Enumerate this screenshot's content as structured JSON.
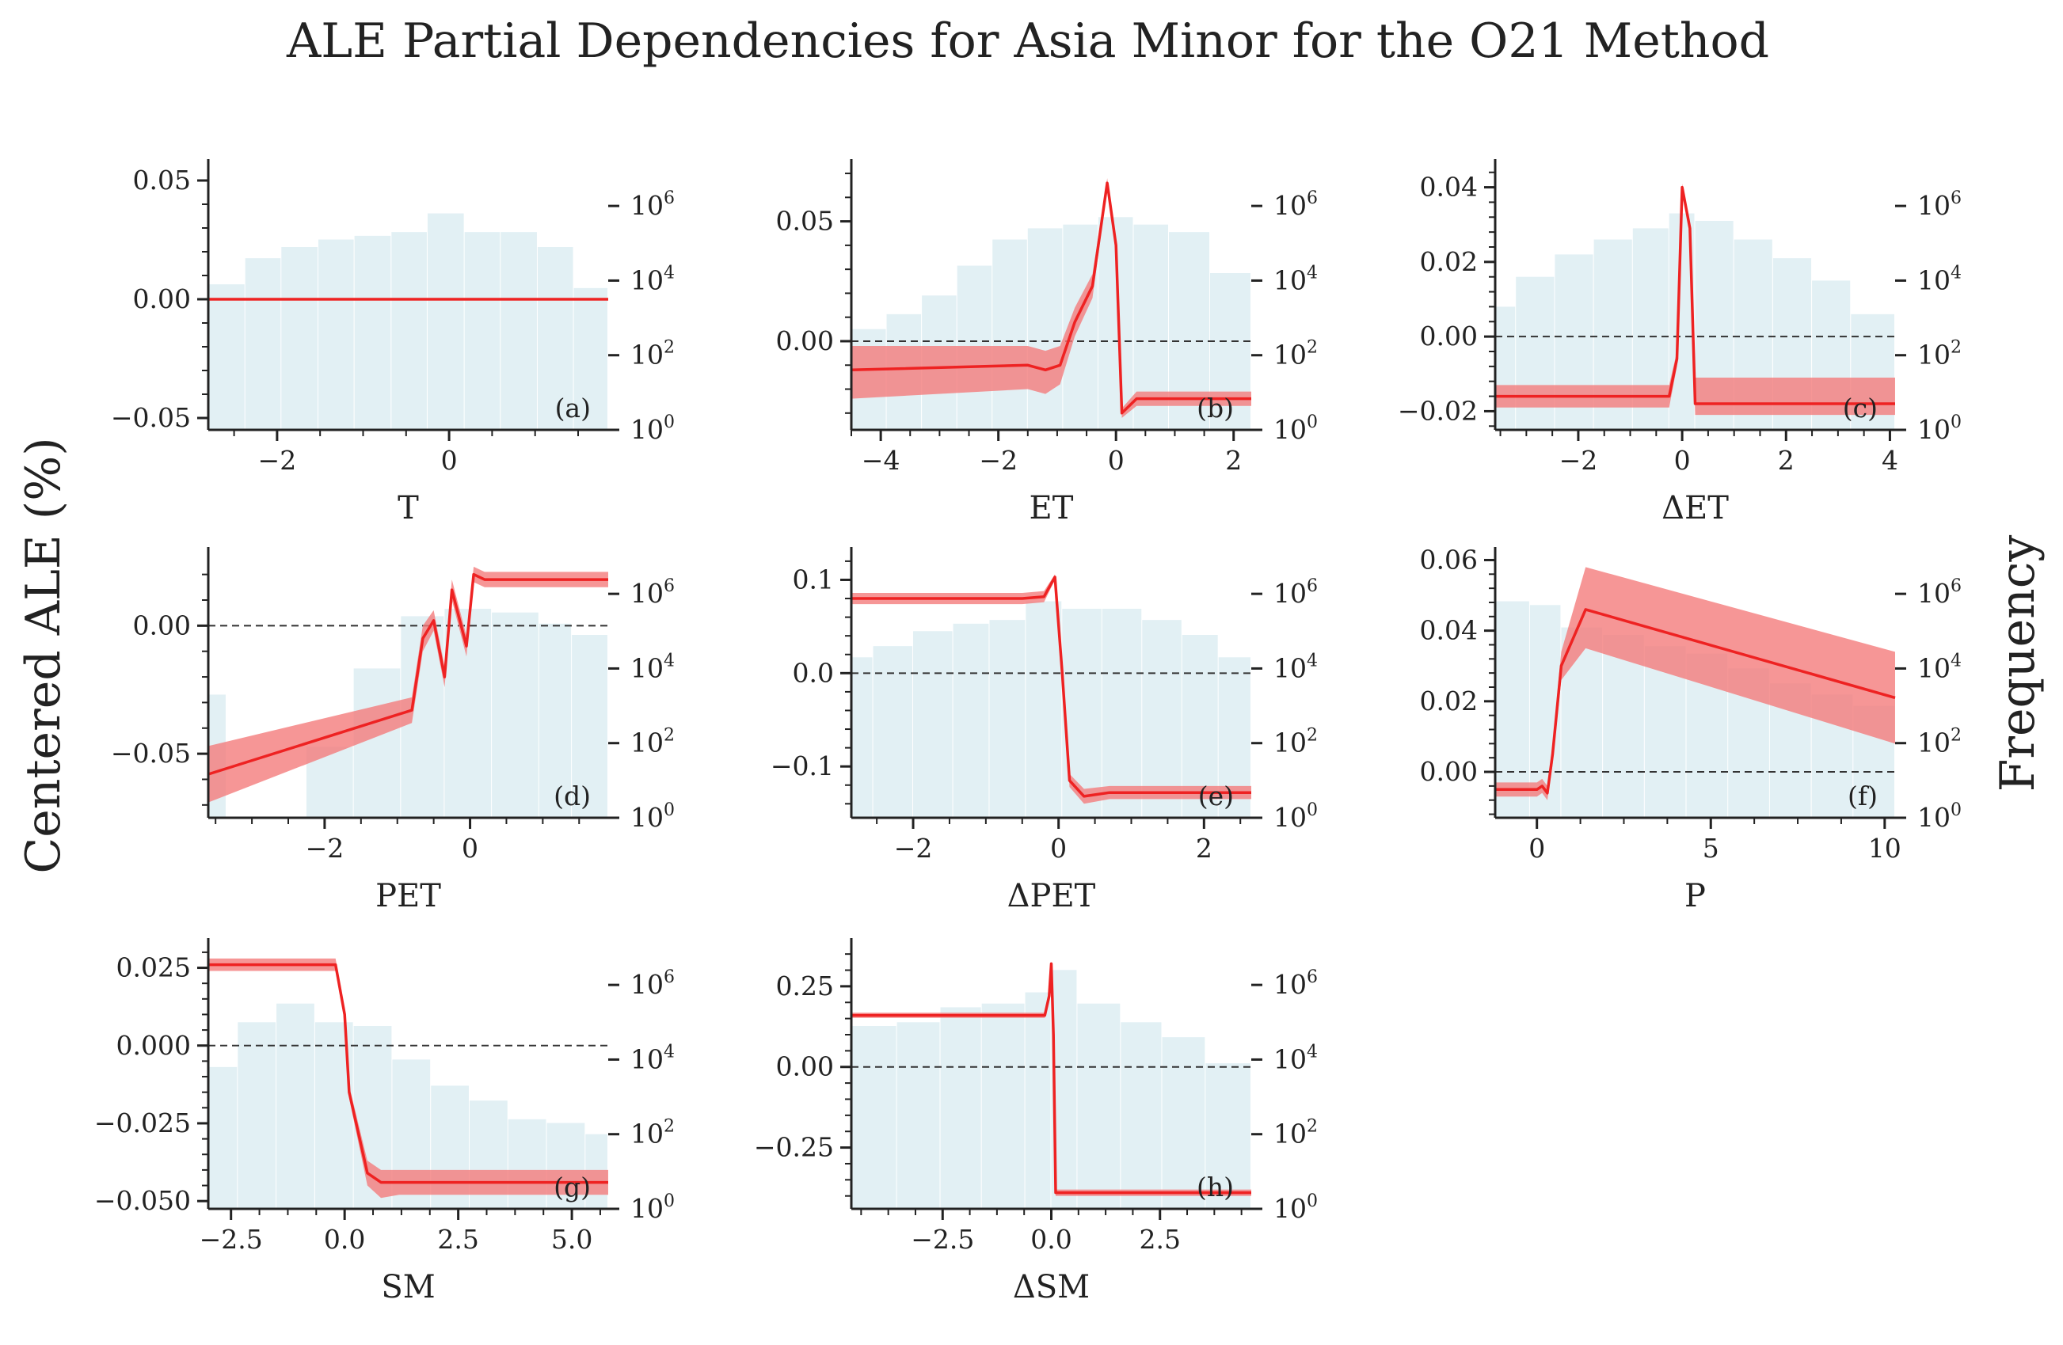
{
  "figure": {
    "title": "ALE Partial Dependencies for Asia Minor for the O21 Method",
    "ylabel_left": "Centered ALE (%)",
    "ylabel_right": "Frequency"
  },
  "colors": {
    "ale_line": "#ee2222",
    "ale_band": "#f47c7c",
    "hist": "#e2f0f4",
    "zero_line": "#333333",
    "axis": "#222222"
  },
  "chart_data": [
    {
      "type": "line",
      "panel": "(a)",
      "xlabel": "T",
      "xlim": [
        -2.8,
        1.85
      ],
      "ylim": [
        -0.055,
        0.055
      ],
      "xticks": [
        {
          "v": -2,
          "t": "−2"
        },
        {
          "v": 0,
          "t": "0"
        }
      ],
      "yticks": [
        {
          "v": -0.05,
          "t": "−0.05"
        },
        {
          "v": 0,
          "t": "0.00"
        },
        {
          "v": 0.05,
          "t": "0.05"
        }
      ],
      "ale": {
        "x": [
          -2.8,
          1.85
        ],
        "y": [
          0,
          0
        ],
        "lo": [
          0,
          0
        ],
        "hi": [
          0,
          0
        ]
      },
      "hist": {
        "edges": [
          -2.8,
          -2.37,
          -1.95,
          -1.52,
          -1.1,
          -0.67,
          -0.25,
          0.18,
          0.6,
          1.03,
          1.45,
          1.85
        ],
        "log10_counts": [
          3.9,
          4.6,
          4.9,
          5.1,
          5.2,
          5.3,
          5.8,
          5.3,
          5.3,
          4.9,
          3.8
        ]
      }
    },
    {
      "type": "line",
      "panel": "(b)",
      "xlabel": "ET",
      "xlim": [
        -4.5,
        2.3
      ],
      "ylim": [
        -0.037,
        0.072
      ],
      "xticks": [
        {
          "v": -4,
          "t": "−4"
        },
        {
          "v": -2,
          "t": "−2"
        },
        {
          "v": 0,
          "t": "0"
        },
        {
          "v": 2,
          "t": "2"
        }
      ],
      "yticks": [
        {
          "v": 0,
          "t": "0.00"
        },
        {
          "v": 0.05,
          "t": "0.05"
        }
      ],
      "ale": {
        "x": [
          -4.5,
          -1.5,
          -1.2,
          -0.95,
          -0.7,
          -0.4,
          -0.15,
          0.0,
          0.1,
          0.35,
          2.3
        ],
        "y": [
          -0.012,
          -0.01,
          -0.012,
          -0.01,
          0.008,
          0.023,
          0.066,
          0.04,
          -0.03,
          -0.024,
          -0.024
        ],
        "lo": [
          -0.024,
          -0.02,
          -0.022,
          -0.018,
          0.002,
          0.018,
          0.064,
          0.038,
          -0.032,
          -0.027,
          -0.027
        ],
        "hi": [
          -0.002,
          -0.002,
          -0.004,
          -0.002,
          0.014,
          0.028,
          0.068,
          0.042,
          -0.028,
          -0.021,
          -0.021
        ]
      },
      "hist": {
        "edges": [
          -4.5,
          -3.9,
          -3.3,
          -2.7,
          -2.1,
          -1.5,
          -0.9,
          -0.3,
          0.3,
          0.9,
          1.6,
          2.3
        ],
        "log10_counts": [
          2.7,
          3.1,
          3.6,
          4.4,
          5.1,
          5.4,
          5.5,
          5.7,
          5.5,
          5.3,
          4.2
        ]
      }
    },
    {
      "type": "line",
      "panel": "(c)",
      "xlabel": "ΔET",
      "xlim": [
        -3.6,
        4.1
      ],
      "ylim": [
        -0.025,
        0.045
      ],
      "xticks": [
        {
          "v": -2,
          "t": "−2"
        },
        {
          "v": 0,
          "t": "0"
        },
        {
          "v": 2,
          "t": "2"
        },
        {
          "v": 4,
          "t": "4"
        }
      ],
      "yticks": [
        {
          "v": -0.02,
          "t": "−0.02"
        },
        {
          "v": 0,
          "t": "0.00"
        },
        {
          "v": 0.02,
          "t": "0.02"
        },
        {
          "v": 0.04,
          "t": "0.04"
        }
      ],
      "ale": {
        "x": [
          -3.6,
          -0.25,
          -0.1,
          0.0,
          0.15,
          0.25,
          4.1
        ],
        "y": [
          -0.016,
          -0.016,
          -0.006,
          0.04,
          0.029,
          -0.018,
          -0.018
        ],
        "lo": [
          -0.019,
          -0.019,
          -0.008,
          0.039,
          0.028,
          -0.021,
          -0.021
        ],
        "hi": [
          -0.013,
          -0.013,
          -0.004,
          0.041,
          0.03,
          -0.011,
          -0.011
        ]
      },
      "hist": {
        "edges": [
          -3.6,
          -3.2,
          -2.45,
          -1.7,
          -0.95,
          -0.25,
          0.25,
          1.0,
          1.75,
          2.5,
          3.25,
          4.1
        ],
        "log10_counts": [
          3.3,
          4.1,
          4.7,
          5.1,
          5.4,
          5.8,
          5.6,
          5.1,
          4.6,
          4.0,
          3.1
        ]
      }
    },
    {
      "type": "line",
      "panel": "(d)",
      "xlabel": "PET",
      "xlim": [
        -3.6,
        1.9
      ],
      "ylim": [
        -0.075,
        0.027
      ],
      "xticks": [
        {
          "v": -2,
          "t": "−2"
        },
        {
          "v": 0,
          "t": "0"
        }
      ],
      "yticks": [
        {
          "v": -0.05,
          "t": "−0.05"
        },
        {
          "v": 0,
          "t": "0.00"
        }
      ],
      "ale": {
        "x": [
          -3.6,
          -0.8,
          -0.65,
          -0.5,
          -0.35,
          -0.25,
          -0.05,
          0.05,
          0.2,
          1.9
        ],
        "y": [
          -0.058,
          -0.033,
          -0.005,
          0.002,
          -0.02,
          0.014,
          -0.008,
          0.02,
          0.018,
          0.018
        ],
        "lo": [
          -0.069,
          -0.038,
          -0.01,
          -0.002,
          -0.024,
          0.01,
          -0.012,
          0.017,
          0.015,
          0.015
        ],
        "hi": [
          -0.047,
          -0.028,
          0.0,
          0.006,
          -0.016,
          0.018,
          -0.004,
          0.023,
          0.021,
          0.021
        ]
      },
      "hist": {
        "edges": [
          -3.6,
          -3.35,
          -2.85,
          -2.25,
          -1.6,
          -0.95,
          -0.35,
          0.3,
          0.95,
          1.4,
          1.9
        ],
        "log10_counts": [
          3.3,
          0,
          0,
          1.9,
          4.0,
          5.4,
          5.6,
          5.5,
          5.2,
          4.9
        ]
      }
    },
    {
      "type": "line",
      "panel": "(e)",
      "xlabel": "ΔPET",
      "xlim": [
        -2.85,
        2.65
      ],
      "ylim": [
        -0.155,
        0.125
      ],
      "xticks": [
        {
          "v": -2,
          "t": "−2"
        },
        {
          "v": 0,
          "t": "0"
        },
        {
          "v": 2,
          "t": "2"
        }
      ],
      "yticks": [
        {
          "v": -0.1,
          "t": "−0.1"
        },
        {
          "v": 0,
          "t": "0.0"
        },
        {
          "v": 0.1,
          "t": "0.1"
        }
      ],
      "ale": {
        "x": [
          -2.85,
          -0.5,
          -0.2,
          -0.05,
          0.05,
          0.15,
          0.35,
          0.7,
          2.65
        ],
        "y": [
          0.08,
          0.08,
          0.082,
          0.103,
          0.0,
          -0.115,
          -0.132,
          -0.128,
          -0.128
        ],
        "lo": [
          0.074,
          0.074,
          0.076,
          0.1,
          -0.004,
          -0.122,
          -0.14,
          -0.135,
          -0.135
        ],
        "hi": [
          0.086,
          0.086,
          0.088,
          0.106,
          0.004,
          -0.108,
          -0.124,
          -0.121,
          -0.121
        ]
      },
      "hist": {
        "edges": [
          -2.85,
          -2.55,
          -2.0,
          -1.45,
          -0.95,
          -0.45,
          0.05,
          0.6,
          1.15,
          1.7,
          2.2,
          2.65
        ],
        "log10_counts": [
          4.3,
          4.6,
          5.0,
          5.2,
          5.3,
          5.8,
          5.6,
          5.6,
          5.3,
          4.9,
          4.3
        ]
      }
    },
    {
      "type": "line",
      "panel": "(f)",
      "xlabel": "P",
      "xlim": [
        -1.2,
        10.3
      ],
      "ylim": [
        -0.013,
        0.061
      ],
      "xticks": [
        {
          "v": 0,
          "t": "0"
        },
        {
          "v": 5,
          "t": "5"
        },
        {
          "v": 10,
          "t": "10"
        }
      ],
      "yticks": [
        {
          "v": 0,
          "t": "0.00"
        },
        {
          "v": 0.02,
          "t": "0.02"
        },
        {
          "v": 0.04,
          "t": "0.04"
        },
        {
          "v": 0.06,
          "t": "0.06"
        }
      ],
      "ale": {
        "x": [
          -1.2,
          0.0,
          0.15,
          0.3,
          0.45,
          0.7,
          1.4,
          10.3
        ],
        "y": [
          -0.005,
          -0.005,
          -0.004,
          -0.006,
          0.005,
          0.03,
          0.046,
          0.021
        ],
        "lo": [
          -0.007,
          -0.007,
          -0.006,
          -0.008,
          0.002,
          0.026,
          0.035,
          0.008
        ],
        "hi": [
          -0.003,
          -0.003,
          -0.002,
          -0.004,
          0.008,
          0.034,
          0.058,
          0.034
        ]
      },
      "hist": {
        "edges": [
          -1.2,
          -0.2,
          0.7,
          1.9,
          3.1,
          4.3,
          5.5,
          6.7,
          7.9,
          9.1,
          10.3
        ],
        "log10_counts": [
          5.8,
          5.7,
          5.1,
          4.9,
          4.6,
          4.4,
          4.0,
          3.6,
          3.3,
          3.0
        ]
      }
    },
    {
      "type": "line",
      "panel": "(g)",
      "xlabel": "SM",
      "xlim": [
        -3.0,
        5.8
      ],
      "ylim": [
        -0.0525,
        0.0315
      ],
      "xticks": [
        {
          "v": -2.5,
          "t": "−2.5"
        },
        {
          "v": 0,
          "t": "0.0"
        },
        {
          "v": 2.5,
          "t": "2.5"
        },
        {
          "v": 5,
          "t": "5.0"
        }
      ],
      "yticks": [
        {
          "v": -0.05,
          "t": "−0.050"
        },
        {
          "v": -0.025,
          "t": "−0.025"
        },
        {
          "v": 0,
          "t": "0.000"
        },
        {
          "v": 0.025,
          "t": "0.025"
        }
      ],
      "ale": {
        "x": [
          -3.0,
          -0.2,
          0.0,
          0.1,
          0.3,
          0.5,
          0.8,
          1.2,
          5.8
        ],
        "y": [
          0.026,
          0.026,
          0.01,
          -0.015,
          -0.028,
          -0.041,
          -0.044,
          -0.044,
          -0.044
        ],
        "lo": [
          0.024,
          0.024,
          0.008,
          -0.017,
          -0.031,
          -0.045,
          -0.049,
          -0.048,
          -0.048
        ],
        "hi": [
          0.028,
          0.028,
          0.012,
          -0.013,
          -0.025,
          -0.037,
          -0.04,
          -0.04,
          -0.04
        ]
      },
      "hist": {
        "edges": [
          -3.0,
          -2.35,
          -1.5,
          -0.65,
          0.2,
          1.05,
          1.9,
          2.75,
          3.6,
          4.45,
          5.3,
          5.8
        ],
        "log10_counts": [
          3.8,
          5.0,
          5.5,
          5.0,
          4.9,
          4.0,
          3.3,
          2.9,
          2.4,
          2.3,
          2.0
        ]
      }
    },
    {
      "type": "line",
      "panel": "(h)",
      "xlabel": "ΔSM",
      "xlim": [
        -4.6,
        4.6
      ],
      "ylim": [
        -0.44,
        0.37
      ],
      "xticks": [
        {
          "v": -2.5,
          "t": "−2.5"
        },
        {
          "v": 0,
          "t": "0.0"
        },
        {
          "v": 2.5,
          "t": "2.5"
        }
      ],
      "yticks": [
        {
          "v": -0.25,
          "t": "−0.25"
        },
        {
          "v": 0,
          "t": "0.00"
        },
        {
          "v": 0.25,
          "t": "0.25"
        }
      ],
      "ale": {
        "x": [
          -4.6,
          -0.15,
          -0.05,
          0.0,
          0.05,
          0.1,
          4.6
        ],
        "y": [
          0.16,
          0.16,
          0.22,
          0.32,
          0.1,
          -0.39,
          -0.39
        ],
        "lo": [
          0.152,
          0.152,
          0.212,
          0.312,
          0.092,
          -0.4,
          -0.4
        ],
        "hi": [
          0.168,
          0.168,
          0.228,
          0.328,
          0.108,
          -0.38,
          -0.38
        ]
      },
      "hist": {
        "edges": [
          -4.6,
          -3.55,
          -2.55,
          -1.6,
          -0.6,
          0.0,
          0.6,
          1.6,
          2.55,
          3.55,
          4.6
        ],
        "log10_counts": [
          4.9,
          5.0,
          5.4,
          5.5,
          5.8,
          6.4,
          5.5,
          5.0,
          4.6,
          3.9
        ]
      }
    }
  ]
}
